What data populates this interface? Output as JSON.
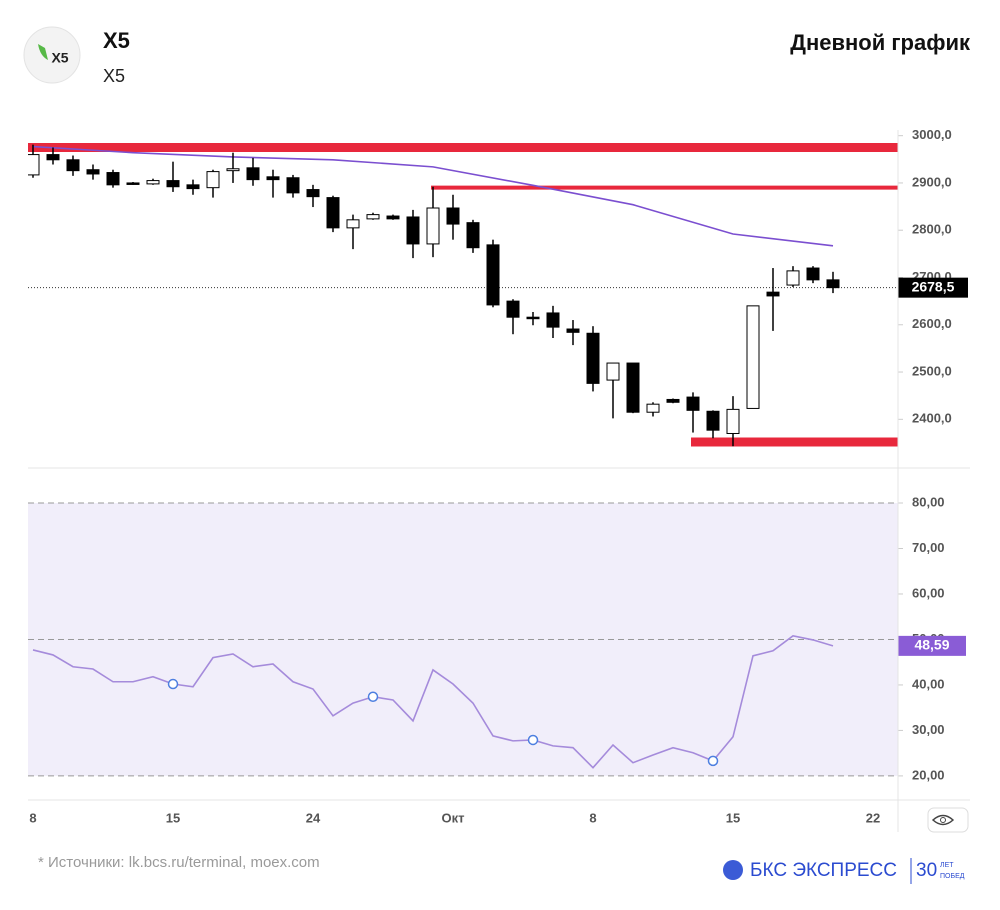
{
  "header": {
    "title": "X5",
    "subtitle": "X5",
    "logo": "X5",
    "chart_kind": "Дневной график"
  },
  "chart_data": [
    {
      "type": "candlestick",
      "open": [
        2917,
        2960,
        2949,
        2928,
        2922,
        2900,
        2898,
        2905,
        2896,
        2890,
        2926,
        2932,
        2913,
        2911,
        2886,
        2869,
        2805,
        2824,
        2830,
        2828,
        2771,
        2847,
        2816,
        2769,
        2650,
        2616,
        2625,
        2591,
        2582,
        2483,
        2519,
        2415,
        2442,
        2447,
        2417,
        2370,
        2423,
        2669,
        2684,
        2720,
        2695
      ],
      "high": [
        2981,
        2975,
        2958,
        2939,
        2928,
        2902,
        2909,
        2945,
        2907,
        2928,
        2964,
        2953,
        2928,
        2917,
        2896,
        2873,
        2833,
        2837,
        2833,
        2843,
        2892,
        2875,
        2822,
        2780,
        2654,
        2627,
        2640,
        2610,
        2597,
        2519,
        2519,
        2436,
        2444,
        2457,
        2419,
        2449,
        2640,
        2720,
        2724,
        2724,
        2712
      ],
      "low": [
        2911,
        2939,
        2915,
        2907,
        2890,
        2896,
        2896,
        2881,
        2875,
        2869,
        2900,
        2894,
        2869,
        2869,
        2849,
        2796,
        2760,
        2822,
        2822,
        2741,
        2743,
        2780,
        2752,
        2637,
        2580,
        2599,
        2572,
        2557,
        2459,
        2402,
        2413,
        2406,
        2434,
        2372,
        2360,
        2343,
        2423,
        2587,
        2680,
        2688,
        2667
      ],
      "close": [
        2960,
        2949,
        2926,
        2919,
        2896,
        2899,
        2905,
        2892,
        2888,
        2924,
        2930,
        2907,
        2907,
        2879,
        2871,
        2805,
        2822,
        2833,
        2824,
        2771,
        2847,
        2813,
        2763,
        2642,
        2616,
        2614,
        2595,
        2584,
        2476,
        2519,
        2415,
        2432,
        2436,
        2419,
        2377,
        2421,
        2640,
        2661,
        2714,
        2695,
        2678.5
      ],
      "last_label": "2678,5",
      "up_color": "#ffffff",
      "down_color": "#000000",
      "ylim": [
        2297,
        3012
      ],
      "yticks": [
        {
          "value": 2400,
          "label": "2400,0"
        },
        {
          "value": 2500,
          "label": "2500,0"
        },
        {
          "value": 2600,
          "label": "2600,0"
        },
        {
          "value": 2700,
          "label": "2700,0"
        },
        {
          "value": 2800,
          "label": "2800,0"
        },
        {
          "value": 2900,
          "label": "2900,0"
        },
        {
          "value": 3000,
          "label": "3000,0"
        }
      ],
      "moving_average": {
        "color": "#7b4fd0",
        "x": [
          0,
          5,
          10,
          15,
          20,
          25,
          30,
          35,
          40
        ],
        "values": [
          2977,
          2964,
          2955,
          2949,
          2934,
          2895,
          2854,
          2792,
          2767
        ]
      },
      "levels": [
        {
          "value": 2975,
          "start": 0,
          "color": "#e8283c"
        },
        {
          "value": 2890,
          "start": 20,
          "color": "#e8283c"
        },
        {
          "value": 2352,
          "start": 33,
          "color": "#e8283c"
        }
      ]
    },
    {
      "type": "line",
      "categories": [
        "8",
        null,
        null,
        null,
        null,
        null,
        null,
        "15",
        null,
        null,
        null,
        null,
        null,
        null,
        "24",
        null,
        null,
        null,
        null,
        null,
        null,
        "Окт",
        null,
        null,
        null,
        null,
        null,
        null,
        "8",
        null,
        null,
        null,
        null,
        null,
        null,
        "15",
        null,
        null,
        null,
        null,
        null,
        null,
        "22"
      ],
      "values": [
        47.7,
        46.6,
        44,
        43.5,
        40.7,
        40.7,
        41.8,
        40.2,
        39.6,
        46,
        46.8,
        44,
        44.6,
        40.7,
        39.1,
        33.2,
        36,
        37.4,
        36.7,
        32.1,
        43.3,
        40.2,
        36,
        28.8,
        27.7,
        27.9,
        26.6,
        26.2,
        21.8,
        26.8,
        22.9,
        24.6,
        26.2,
        25.1,
        23.3,
        28.6,
        46.4,
        47.5,
        50.8,
        49.9,
        48.59,
        null,
        null
      ],
      "last_label": "48,59",
      "color": "#a58bdb",
      "band": [
        20,
        80
      ],
      "band_color": "#f1eefa",
      "levels": [
        20,
        50,
        80
      ],
      "highlight_points": [
        7,
        17,
        25,
        34
      ],
      "ylim": [
        14.7,
        85.5
      ],
      "yticks": [
        {
          "value": 20,
          "label": "20,00"
        },
        {
          "value": 30,
          "label": "30,00"
        },
        {
          "value": 40,
          "label": "40,00"
        },
        {
          "value": 50,
          "label": "50,00"
        },
        {
          "value": 60,
          "label": "60,00"
        },
        {
          "value": 70,
          "label": "70,00"
        },
        {
          "value": 80,
          "label": "80,00"
        }
      ]
    }
  ],
  "footer": {
    "source": "* Источники: lk.bcs.ru/terminal, moex.com",
    "brand": "БКС ЭКСПРЕСС",
    "badge_number": "30",
    "badge_lines": [
      "ЛЕТ",
      "ПОБЕД"
    ]
  }
}
